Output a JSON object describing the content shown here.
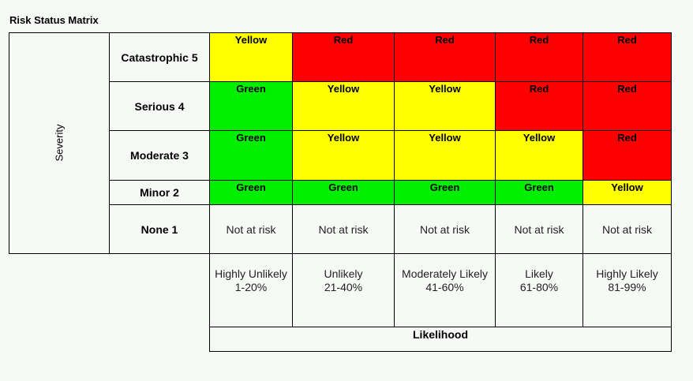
{
  "title": "Risk Status Matrix",
  "severity_axis_label": "Severity",
  "likelihood_axis_label": "Likelihood",
  "rows": [
    {
      "label": "Catastrophic 5",
      "cells": [
        "Yellow",
        "Red",
        "Red",
        "Red",
        "Red"
      ]
    },
    {
      "label": "Serious 4",
      "cells": [
        "Green",
        "Yellow",
        "Yellow",
        "Red",
        "Red"
      ]
    },
    {
      "label": "Moderate 3",
      "cells": [
        "Green",
        "Yellow",
        "Yellow",
        "Yellow",
        "Red"
      ]
    },
    {
      "label": "Minor 2",
      "cells": [
        "Green",
        "Green",
        "Green",
        "Green",
        "Yellow"
      ]
    },
    {
      "label": "None 1",
      "cells": [
        "Not at risk",
        "Not at risk",
        "Not at risk",
        "Not at risk",
        "Not at risk"
      ]
    }
  ],
  "columns": [
    {
      "label": "Highly Unlikely",
      "range": "1-20%"
    },
    {
      "label": "Unlikely",
      "range": "21-40%"
    },
    {
      "label": "Moderately Likely",
      "range": "41-60%"
    },
    {
      "label": "Likely",
      "range": "61-80%"
    },
    {
      "label": "Highly Likely",
      "range": "81-99%"
    }
  ],
  "colors": {
    "green": "#00ef00",
    "yellow": "#ffff00",
    "red": "#ff0000",
    "background": "#f7f9f7"
  }
}
